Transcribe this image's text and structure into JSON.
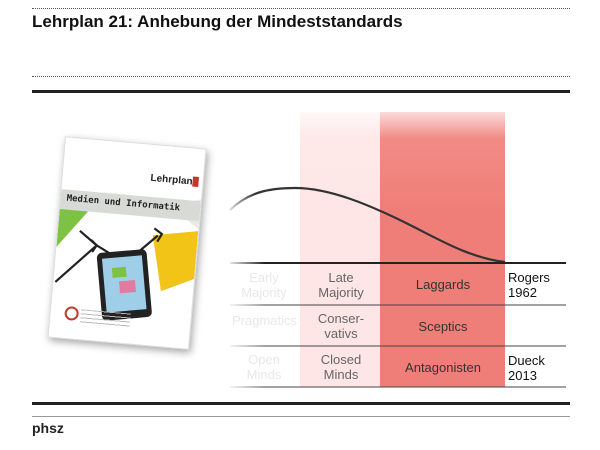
{
  "title": "Lehrplan 21: Anhebung der Mindeststandards",
  "footer": "phsz",
  "brochure": {
    "logo_text": "Lehrplan",
    "banner_text": "Medien und Informatik"
  },
  "table": {
    "rows": [
      {
        "cells": [
          "Early\nMajority",
          "Late\nMajority",
          "Laggards"
        ],
        "source": "Rogers\n1962"
      },
      {
        "cells": [
          "Pragmatics",
          "Conser-\nvativs",
          "Sceptics"
        ],
        "source": ""
      },
      {
        "cells": [
          "Open\nMinds",
          "Closed\nMinds",
          "Antagonisten"
        ],
        "source": "Dueck\n2013"
      }
    ]
  },
  "colors": {
    "col2_fade": "#fde3e3",
    "col3_fill": "#f07e78",
    "curve": "#333333"
  },
  "icons": {
    "cover_arrow": "arrow-icon",
    "cover_phone": "smartphone-icon"
  }
}
